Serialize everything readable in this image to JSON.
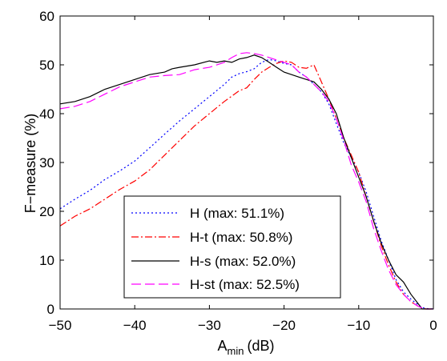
{
  "chart_data": {
    "type": "line",
    "title": "",
    "xlabel": "A",
    "xlabel_sub": "min",
    "xlabel_unit": "(dB)",
    "ylabel": "F−measure (%)",
    "xlim": [
      -50,
      0
    ],
    "ylim": [
      0,
      60
    ],
    "grid": false,
    "legend_position": "bottom-left",
    "x_ticks": [
      -50,
      -40,
      -30,
      -20,
      -10,
      0
    ],
    "x_tick_labels": [
      "−50",
      "−40",
      "−30",
      "−20",
      "−10",
      "0"
    ],
    "y_ticks": [
      0,
      10,
      20,
      30,
      40,
      50,
      60
    ],
    "y_tick_labels": [
      "0",
      "10",
      "20",
      "30",
      "40",
      "50",
      "60"
    ],
    "series": [
      {
        "name": "H (max: 51.1%)",
        "color": "#0000ff",
        "dash": "2,3",
        "x": [
          -50,
          -48,
          -46,
          -44,
          -42,
          -40,
          -38,
          -36,
          -34,
          -32,
          -30,
          -28,
          -27,
          -26,
          -25,
          -24,
          -23,
          -22,
          -21,
          -20,
          -19,
          -18,
          -17,
          -16,
          -15,
          -14,
          -13,
          -12,
          -11,
          -10,
          -9,
          -8,
          -7,
          -6,
          -5,
          -4,
          -3,
          -2,
          -1.5,
          -1,
          0
        ],
        "y": [
          20.5,
          22.5,
          24.3,
          26.5,
          28.3,
          30.3,
          33,
          35.8,
          38.5,
          41,
          43.5,
          46,
          47.5,
          48.2,
          48.6,
          49.2,
          50.5,
          51.1,
          50.8,
          50.3,
          50,
          48.5,
          47.5,
          46,
          44.5,
          42,
          38,
          34,
          31,
          28,
          24,
          19,
          14,
          10,
          6,
          3.5,
          2,
          0.8,
          0.3,
          0.1,
          0
        ]
      },
      {
        "name": "H-t (max: 50.8%)",
        "color": "#ff0000",
        "dash": "9,3,2,3",
        "x": [
          -50,
          -48,
          -46,
          -44,
          -42,
          -40,
          -38,
          -36,
          -34,
          -32,
          -30,
          -28,
          -26,
          -25,
          -24,
          -23,
          -22,
          -21,
          -20,
          -19,
          -18,
          -17,
          -16,
          -15,
          -14,
          -13,
          -12,
          -11,
          -10,
          -9,
          -8,
          -7,
          -6,
          -5,
          -4,
          -3,
          -2,
          -1.5,
          -1,
          0
        ],
        "y": [
          17,
          19,
          20.5,
          22.5,
          24.5,
          26.2,
          28.5,
          31.5,
          34.5,
          37.5,
          40,
          42.5,
          44.7,
          45.3,
          47,
          48.5,
          49.5,
          50.3,
          50.8,
          50.5,
          49.5,
          49.3,
          50,
          46.5,
          43,
          39,
          35,
          31.5,
          28,
          23,
          18,
          13,
          9,
          5.5,
          3,
          1.5,
          0.5,
          0.2,
          0,
          0
        ]
      },
      {
        "name": "H-s (max: 52.0%)",
        "color": "#000000",
        "dash": "",
        "x": [
          -50,
          -48,
          -46,
          -44,
          -42,
          -40,
          -38,
          -36,
          -35,
          -34,
          -32,
          -30,
          -29,
          -28,
          -27,
          -26,
          -25,
          -24,
          -23,
          -22,
          -21,
          -20,
          -19,
          -18,
          -17,
          -16,
          -15,
          -14,
          -13,
          -12,
          -11,
          -10,
          -9,
          -8,
          -7,
          -6,
          -5,
          -4,
          -3,
          -2,
          -1.5,
          -1,
          0
        ],
        "y": [
          42,
          42.5,
          43.5,
          45,
          46,
          47,
          48,
          48.5,
          49.2,
          49.5,
          50,
          50.8,
          50.5,
          50.8,
          50.5,
          51.2,
          51.5,
          52,
          51.5,
          50.5,
          49.5,
          48.5,
          48,
          47.5,
          47,
          46.5,
          45,
          43,
          40,
          35,
          31,
          27,
          23,
          18,
          13.5,
          10,
          7,
          5.5,
          3,
          1,
          0,
          0,
          0
        ]
      },
      {
        "name": "H-st (max: 52.5%)",
        "color": "#ff00ff",
        "dash": "12,5",
        "x": [
          -50,
          -48,
          -46,
          -44,
          -42,
          -40,
          -38,
          -36,
          -34,
          -32,
          -30,
          -28,
          -27,
          -26,
          -25,
          -24,
          -23,
          -22,
          -21,
          -20,
          -19,
          -18,
          -17,
          -16,
          -15,
          -14,
          -13,
          -12,
          -11,
          -10,
          -9,
          -8,
          -7,
          -6,
          -5,
          -4,
          -3,
          -2,
          -1.5,
          -1,
          0
        ],
        "y": [
          41,
          41.5,
          42.5,
          44,
          45.5,
          46.5,
          47.5,
          47.8,
          48,
          49,
          49.5,
          50.5,
          51.5,
          52.3,
          52.5,
          52.3,
          52,
          51.5,
          51,
          50.5,
          50,
          48.5,
          47.5,
          46,
          44.5,
          42.5,
          39,
          34.5,
          29.5,
          26,
          22,
          16.5,
          12,
          8,
          5,
          3,
          1.5,
          0.5,
          0.2,
          0,
          0
        ]
      }
    ]
  }
}
